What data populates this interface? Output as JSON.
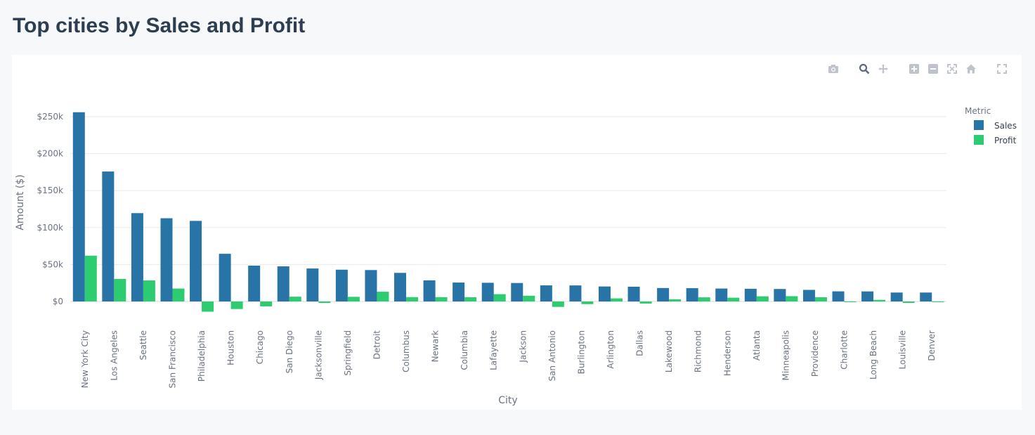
{
  "page": {
    "title": "Top cities by Sales and Profit"
  },
  "modebar": {
    "icons": [
      "camera-icon",
      "zoom-icon",
      "pan-icon",
      "zoom-in-icon",
      "zoom-out-icon",
      "autoscale-icon",
      "home-icon",
      "fullscreen-icon"
    ]
  },
  "colors": {
    "sales": "#2874a6",
    "profit": "#2ecc71",
    "grid": "#e8eaee",
    "text": "#6b7280"
  },
  "chart_data": {
    "type": "bar",
    "xlabel": "City",
    "ylabel": "Amount ($)",
    "ylim": [
      -20000,
      265000
    ],
    "yticks": [
      0,
      50000,
      100000,
      150000,
      200000,
      250000
    ],
    "ytick_labels": [
      "$0",
      "$50k",
      "$100k",
      "$150k",
      "$200k",
      "$250k"
    ],
    "grid": true,
    "legend": {
      "title": "Metric",
      "placement": "top-right"
    },
    "categories": [
      "New York City",
      "Los Angeles",
      "Seattle",
      "San Francisco",
      "Philadelphia",
      "Houston",
      "Chicago",
      "San Diego",
      "Jacksonville",
      "Springfield",
      "Detroit",
      "Columbus",
      "Newark",
      "Columbia",
      "Lafayette",
      "Jackson",
      "San Antonio",
      "Burlington",
      "Arlington",
      "Dallas",
      "Lakewood",
      "Richmond",
      "Henderson",
      "Atlanta",
      "Minneapolis",
      "Providence",
      "Charlotte",
      "Long Beach",
      "Louisville",
      "Denver"
    ],
    "series": [
      {
        "name": "Sales",
        "values": [
          256000,
          175800,
          119500,
          112600,
          109000,
          64500,
          48500,
          47500,
          44600,
          43000,
          42500,
          38700,
          28600,
          25600,
          25300,
          25000,
          21800,
          21700,
          20300,
          20000,
          18200,
          18000,
          17500,
          17200,
          16900,
          15700,
          13700,
          13600,
          12100,
          12100
        ]
      },
      {
        "name": "Profit",
        "values": [
          62000,
          30500,
          28500,
          17500,
          -13800,
          -10200,
          -6600,
          6500,
          -2000,
          6300,
          13200,
          5900,
          5800,
          5700,
          9900,
          7800,
          -7300,
          -3600,
          4200,
          -2800,
          3000,
          5600,
          5100,
          7000,
          7200,
          5700,
          -1000,
          2200,
          -1900,
          -700
        ]
      }
    ]
  }
}
